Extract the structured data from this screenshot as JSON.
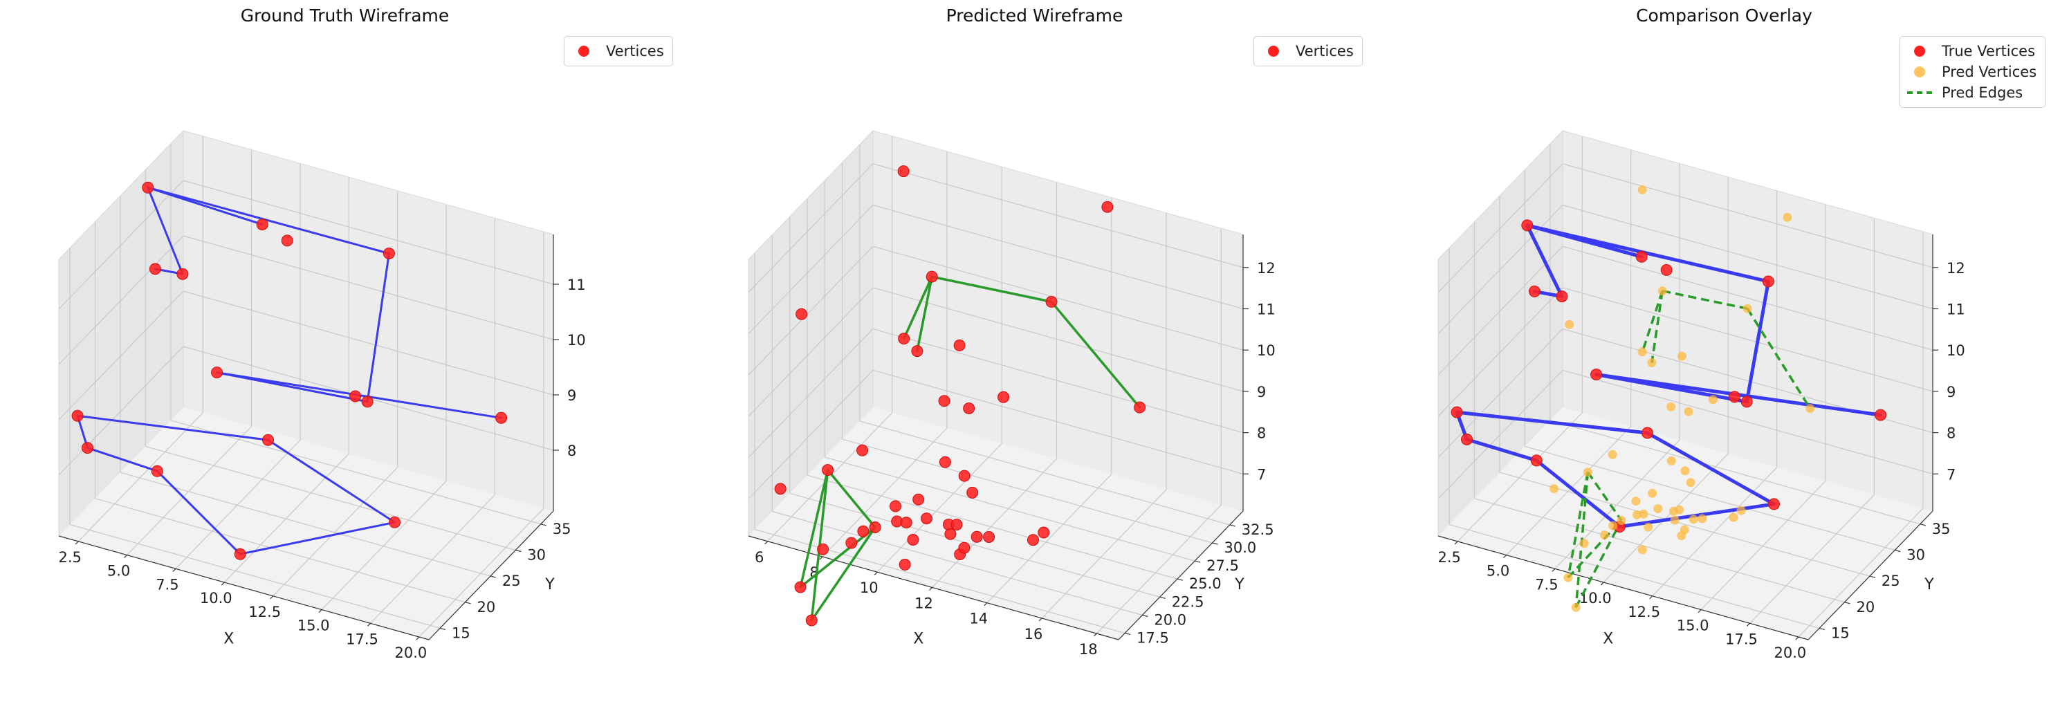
{
  "figure": {
    "panels": [
      {
        "title": "Ground Truth Wireframe",
        "legend": [
          {
            "label": "Vertices",
            "color": "#ff2020",
            "kind": "dot"
          }
        ]
      },
      {
        "title": "Predicted Wireframe",
        "legend": [
          {
            "label": "Vertices",
            "color": "#ff2020",
            "kind": "dot"
          }
        ]
      },
      {
        "title": "Comparison Overlay",
        "legend": [
          {
            "label": "True Vertices",
            "color": "#ff2020",
            "kind": "dot"
          },
          {
            "label": "Pred Vertices",
            "color": "#ffb733",
            "kind": "dot"
          },
          {
            "label": "Pred Edges",
            "color": "#2a9a2a",
            "kind": "dash"
          }
        ]
      }
    ]
  },
  "chart_data": [
    {
      "type": "scatter3d",
      "title": "Ground Truth Wireframe",
      "xlabel": "X",
      "ylabel": "Y",
      "zlabel": "",
      "xlim": [
        1.5,
        20.5
      ],
      "ylim": [
        12.8,
        37.5
      ],
      "zlim": [
        6.9,
        11.9
      ],
      "xticks": [
        "2.5",
        "5.0",
        "7.5",
        "10.0",
        "12.5",
        "15.0",
        "17.5",
        "20.0"
      ],
      "yticks": [
        "15",
        "20",
        "25",
        "30",
        "35"
      ],
      "zticks": [
        "8",
        "9",
        "10",
        "11"
      ],
      "legend_position": "top-right",
      "grid": true,
      "series": [
        {
          "name": "Vertices",
          "color": "#ff2020",
          "points": [
            [
              2.4,
              27.0,
              11.95
            ],
            [
              7.6,
              29.6,
              11.55
            ],
            [
              8.8,
              29.9,
              11.35
            ],
            [
              13.2,
              33.1,
              11.25
            ],
            [
              3.5,
              24.2,
              10.85
            ],
            [
              4.8,
              24.6,
              10.85
            ],
            [
              6.9,
              23.3,
              9.4
            ],
            [
              13.2,
              26.4,
              9.3
            ],
            [
              13.8,
              26.5,
              9.25
            ],
            [
              19.4,
              31.4,
              9.05
            ],
            [
              2.1,
              14.2,
              9.0
            ],
            [
              3.0,
              12.7,
              8.65
            ],
            [
              6.4,
              13.4,
              8.5
            ],
            [
              10.2,
              20.7,
              8.75
            ],
            [
              16.8,
              20.3,
              7.95
            ],
            [
              10.4,
              14.4,
              7.3
            ]
          ],
          "edges": [
            [
              0,
              1
            ],
            [
              0,
              3
            ],
            [
              0,
              5
            ],
            [
              4,
              5
            ],
            [
              3,
              8
            ],
            [
              6,
              8
            ],
            [
              6,
              9
            ],
            [
              10,
              13
            ],
            [
              10,
              11
            ],
            [
              11,
              12
            ],
            [
              12,
              15
            ],
            [
              15,
              14
            ],
            [
              14,
              13
            ]
          ]
        }
      ]
    },
    {
      "type": "scatter3d",
      "title": "Predicted Wireframe",
      "xlabel": "X",
      "ylabel": "Y",
      "zlabel": "",
      "xlim": [
        5.3,
        18.8
      ],
      "ylim": [
        16.6,
        34.4
      ],
      "zlim": [
        6.1,
        12.8
      ],
      "xticks": [
        "6",
        "8",
        "10",
        "12",
        "14",
        "16",
        "18"
      ],
      "yticks": [
        "17.5",
        "20.0",
        "22.5",
        "25.0",
        "27.5",
        "30.0",
        "32.5"
      ],
      "zticks": [
        "7",
        "8",
        "9",
        "10",
        "11",
        "12"
      ],
      "legend_position": "top-right",
      "grid": true,
      "series": [
        {
          "name": "Vertices",
          "color": "#ff2020",
          "points": [
            [
              7.98,
              28.27,
              13.39
            ],
            [
              14.58,
              31.55,
              13.18
            ],
            [
              5.88,
              21.91,
              10.65
            ],
            [
              9.21,
              27.5,
              11.2
            ],
            [
              13.35,
              28.37,
              11.21
            ],
            [
              16.43,
              28.91,
              9.13
            ],
            [
              8.51,
              26.24,
              9.79
            ],
            [
              9.04,
              26.06,
              9.62
            ],
            [
              10.34,
              27.02,
              9.83
            ],
            [
              10.39,
              24.64,
              8.91
            ],
            [
              11.35,
              24.41,
              8.95
            ],
            [
              12.42,
              25.15,
              9.29
            ],
            [
              8.22,
              21.43,
              7.87
            ],
            [
              11.12,
              21.92,
              8.04
            ],
            [
              12.04,
              21.06,
              8.03
            ],
            [
              6.32,
              17.17,
              7.33
            ],
            [
              7.44,
              19.55,
              7.58
            ],
            [
              8.08,
              16.35,
              6.34
            ],
            [
              9.1,
              16.42,
              6.67
            ],
            [
              10.85,
              19.15,
              7.57
            ],
            [
              10.08,
              18.88,
              7.31
            ],
            [
              9.68,
              17.54,
              6.96
            ],
            [
              9.22,
              17.64,
              6.76
            ],
            [
              10.27,
              18.35,
              7.07
            ],
            [
              10.73,
              17.89,
              7.21
            ],
            [
              11.44,
              18.0,
              7.42
            ],
            [
              12.77,
              19.34,
              8.06
            ],
            [
              11.32,
              16.53,
              7.14
            ],
            [
              12.4,
              17.39,
              7.56
            ],
            [
              12.52,
              17.17,
              7.39
            ],
            [
              11.32,
              15.38,
              6.74
            ],
            [
              12.77,
              17.09,
              7.68
            ],
            [
              13.24,
              15.71,
              7.29
            ],
            [
              13.34,
              15.95,
              7.42
            ],
            [
              13.62,
              16.65,
              7.62
            ],
            [
              14.05,
              16.68,
              7.69
            ],
            [
              15.71,
              16.5,
              7.96
            ],
            [
              15.98,
              16.95,
              8.11
            ],
            [
              7.81,
              14.19,
              5.75
            ],
            [
              8.47,
              13.21,
              5.24
            ]
          ],
          "edges": []
        },
        {
          "name": "Edges",
          "color": "#2a9a2a",
          "points": [],
          "edges": [
            [
              3,
              6
            ],
            [
              3,
              7
            ],
            [
              3,
              4
            ],
            [
              4,
              5
            ],
            [
              16,
              38
            ],
            [
              16,
              39
            ],
            [
              38,
              21
            ],
            [
              39,
              21
            ],
            [
              16,
              21
            ]
          ]
        }
      ]
    },
    {
      "type": "scatter3d",
      "title": "Comparison Overlay",
      "xlabel": "X",
      "ylabel": "Y",
      "zlabel": "",
      "xlim": [
        1.5,
        20.5
      ],
      "ylim": [
        12.8,
        37.5
      ],
      "zlim": [
        6.1,
        12.8
      ],
      "xticks": [
        "2.5",
        "5.0",
        "7.5",
        "10.0",
        "12.5",
        "15.0",
        "17.5",
        "20.0"
      ],
      "yticks": [
        "15",
        "20",
        "25",
        "30",
        "35"
      ],
      "zticks": [
        "7",
        "8",
        "9",
        "10",
        "11",
        "12"
      ],
      "legend_position": "top-right",
      "grid": true,
      "series": [
        {
          "name": "True Vertices",
          "color": "#ff2020",
          "points": [
            [
              2.4,
              27.0,
              11.95
            ],
            [
              7.6,
              29.6,
              11.55
            ],
            [
              8.8,
              29.9,
              11.35
            ],
            [
              13.2,
              33.1,
              11.25
            ],
            [
              3.5,
              24.2,
              10.85
            ],
            [
              4.8,
              24.6,
              10.85
            ],
            [
              6.9,
              23.3,
              9.4
            ],
            [
              13.2,
              26.4,
              9.3
            ],
            [
              13.8,
              26.5,
              9.25
            ],
            [
              19.4,
              31.4,
              9.05
            ],
            [
              2.1,
              14.2,
              9.0
            ],
            [
              3.0,
              12.7,
              8.65
            ],
            [
              6.4,
              13.4,
              8.5
            ],
            [
              10.2,
              20.7,
              8.75
            ],
            [
              16.8,
              20.3,
              7.95
            ],
            [
              10.4,
              14.4,
              7.3
            ]
          ],
          "edges": [
            [
              0,
              1
            ],
            [
              0,
              3
            ],
            [
              0,
              5
            ],
            [
              4,
              5
            ],
            [
              3,
              8
            ],
            [
              6,
              8
            ],
            [
              6,
              9
            ],
            [
              10,
              13
            ],
            [
              10,
              11
            ],
            [
              11,
              12
            ],
            [
              12,
              15
            ],
            [
              15,
              14
            ],
            [
              14,
              13
            ]
          ]
        },
        {
          "name": "Pred Vertices",
          "color": "#ffb733",
          "points": [
            [
              7.98,
              28.27,
              13.39
            ],
            [
              14.58,
              31.55,
              13.18
            ],
            [
              5.88,
              21.91,
              10.65
            ],
            [
              9.21,
              27.5,
              11.2
            ],
            [
              13.35,
              28.37,
              11.21
            ],
            [
              16.43,
              28.91,
              9.13
            ],
            [
              8.51,
              26.24,
              9.79
            ],
            [
              9.04,
              26.06,
              9.62
            ],
            [
              10.34,
              27.02,
              9.83
            ],
            [
              10.39,
              24.64,
              8.91
            ],
            [
              11.35,
              24.41,
              8.95
            ],
            [
              12.42,
              25.15,
              9.29
            ],
            [
              8.22,
              21.43,
              7.87
            ],
            [
              11.12,
              21.92,
              8.04
            ],
            [
              12.04,
              21.06,
              8.03
            ],
            [
              6.32,
              17.17,
              7.33
            ],
            [
              7.44,
              19.55,
              7.58
            ],
            [
              8.08,
              16.35,
              6.34
            ],
            [
              9.1,
              16.42,
              6.67
            ],
            [
              10.85,
              19.15,
              7.57
            ],
            [
              10.08,
              18.88,
              7.31
            ],
            [
              9.68,
              17.54,
              6.96
            ],
            [
              9.22,
              17.64,
              6.76
            ],
            [
              10.27,
              18.35,
              7.07
            ],
            [
              10.73,
              17.89,
              7.21
            ],
            [
              11.44,
              18.0,
              7.42
            ],
            [
              12.77,
              19.34,
              8.06
            ],
            [
              11.32,
              16.53,
              7.14
            ],
            [
              12.4,
              17.39,
              7.56
            ],
            [
              12.52,
              17.17,
              7.39
            ],
            [
              11.32,
              15.38,
              6.74
            ],
            [
              12.77,
              17.09,
              7.68
            ],
            [
              13.24,
              15.71,
              7.29
            ],
            [
              13.34,
              15.95,
              7.42
            ],
            [
              13.62,
              16.65,
              7.62
            ],
            [
              14.05,
              16.68,
              7.69
            ],
            [
              15.71,
              16.5,
              7.96
            ],
            [
              15.98,
              16.95,
              8.11
            ],
            [
              7.81,
              14.19,
              5.75
            ],
            [
              8.47,
              13.21,
              5.24
            ]
          ],
          "edges": []
        },
        {
          "name": "Pred Edges",
          "color": "#2a9a2a",
          "points": [],
          "edges": [
            [
              3,
              6
            ],
            [
              3,
              7
            ],
            [
              3,
              4
            ],
            [
              4,
              5
            ],
            [
              16,
              38
            ],
            [
              16,
              39
            ],
            [
              38,
              21
            ],
            [
              39,
              21
            ],
            [
              16,
              21
            ]
          ]
        }
      ]
    }
  ]
}
